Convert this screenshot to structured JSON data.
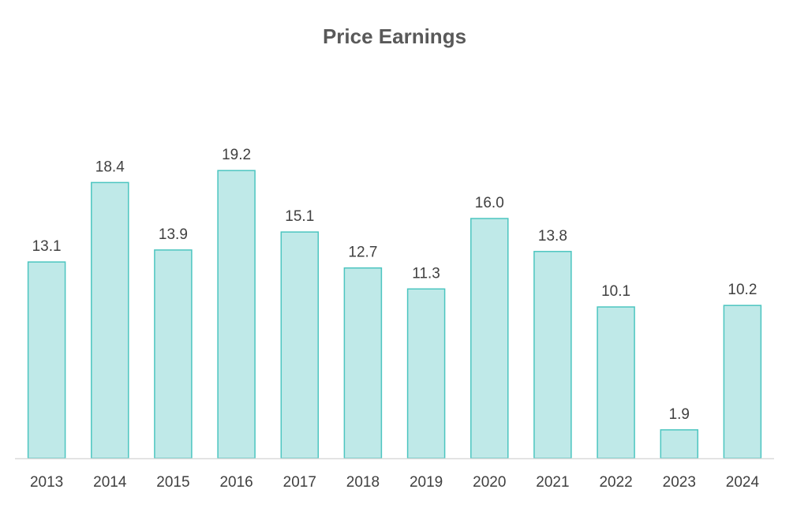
{
  "chart_data": {
    "type": "bar",
    "title": "Price Earnings",
    "categories": [
      "2013",
      "2014",
      "2015",
      "2016",
      "2017",
      "2018",
      "2019",
      "2020",
      "2021",
      "2022",
      "2023",
      "2024"
    ],
    "values": [
      13.1,
      18.4,
      13.9,
      19.2,
      15.1,
      12.7,
      11.3,
      16.0,
      13.8,
      10.1,
      1.9,
      10.2
    ],
    "data_labels": [
      "13.1",
      "18.4",
      "13.9",
      "19.2",
      "15.1",
      "12.7",
      "11.3",
      "16.0",
      "13.8",
      "10.1",
      "1.9",
      "10.2"
    ],
    "xlabel": "",
    "ylabel": "",
    "ylim": [
      0,
      25
    ],
    "grid": false,
    "legend": "none",
    "colors": {
      "bar_fill": "#bfe9e8",
      "bar_stroke": "#4cc5c0",
      "axis": "#d9d9d9",
      "text": "#404040",
      "title": "#595959"
    }
  }
}
